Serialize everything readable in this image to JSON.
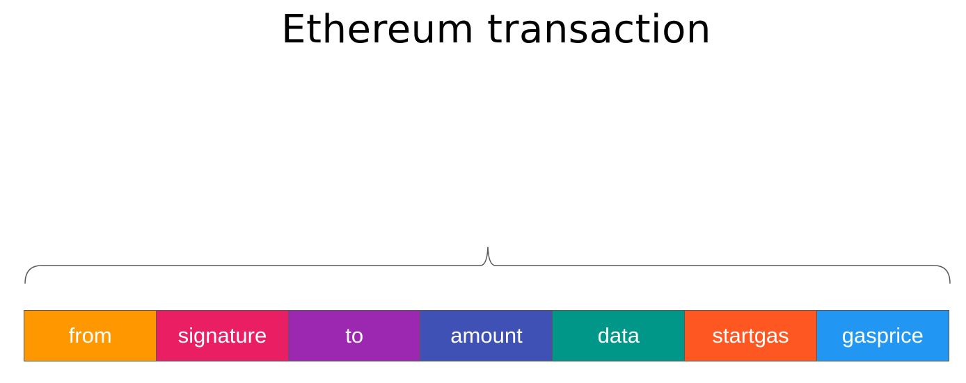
{
  "title": "Ethereum transaction",
  "fields": [
    {
      "label": "from",
      "color": "#ff9800"
    },
    {
      "label": "signature",
      "color": "#e91e63"
    },
    {
      "label": "to",
      "color": "#9c27b0"
    },
    {
      "label": "amount",
      "color": "#3f51b5"
    },
    {
      "label": "data",
      "color": "#009688"
    },
    {
      "label": "startgas",
      "color": "#ff5722"
    },
    {
      "label": "gasprice",
      "color": "#2196f3"
    }
  ],
  "brace_color": "#595959"
}
